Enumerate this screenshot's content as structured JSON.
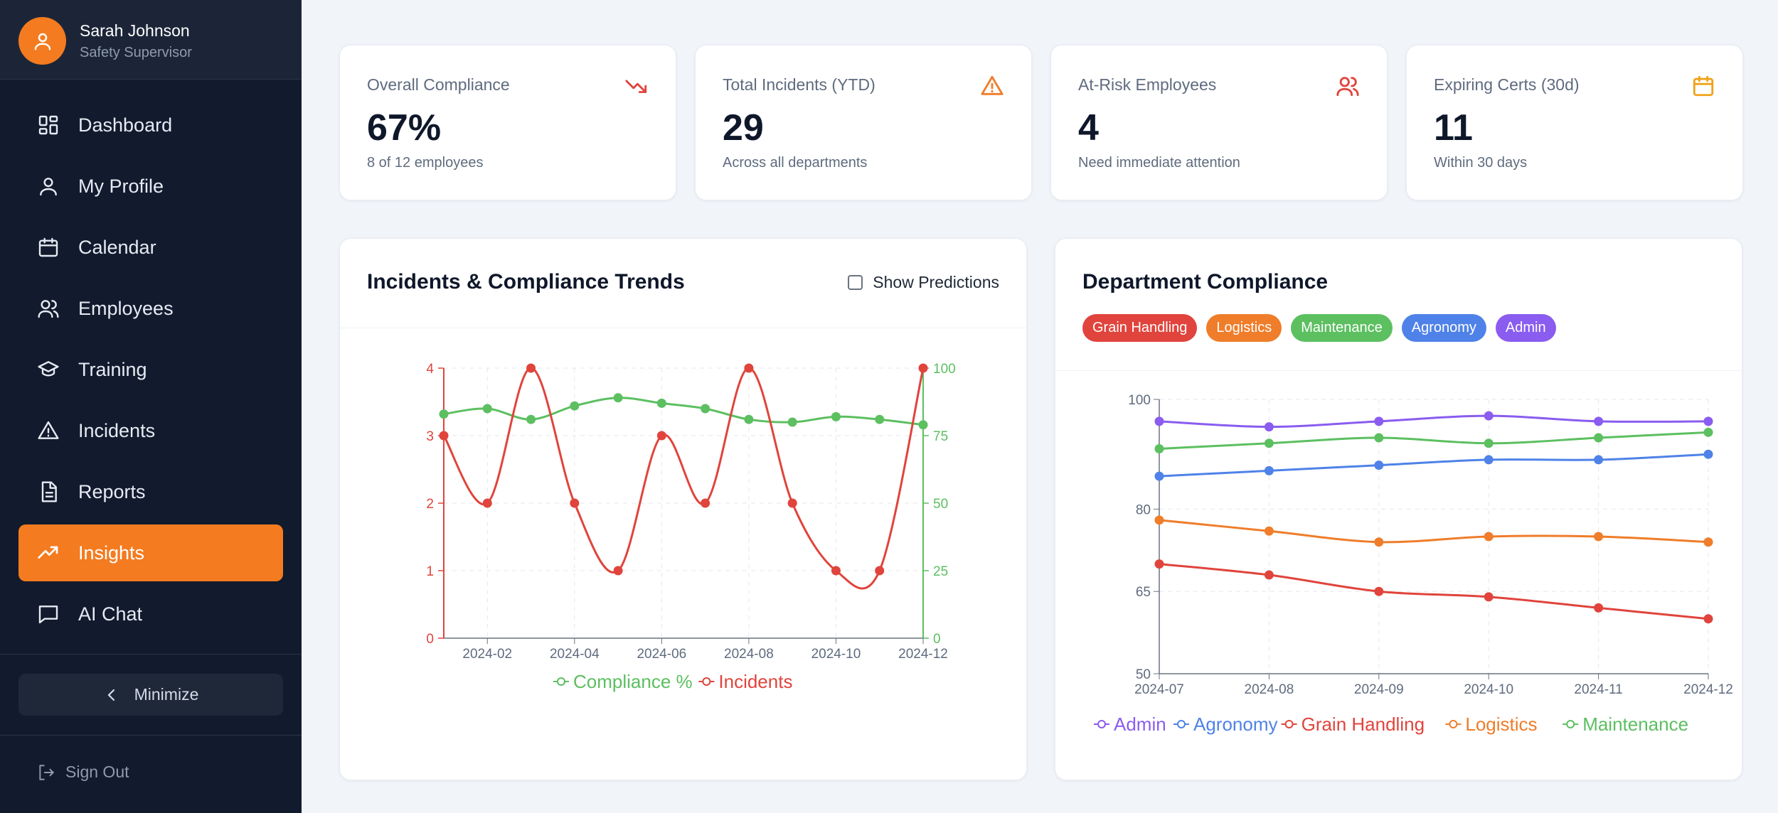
{
  "user": {
    "name": "Sarah Johnson",
    "role": "Safety Supervisor"
  },
  "nav": [
    {
      "label": "Dashboard",
      "icon": "dashboard-icon",
      "active": false
    },
    {
      "label": "My Profile",
      "icon": "user-icon",
      "active": false
    },
    {
      "label": "Calendar",
      "icon": "calendar-icon",
      "active": false
    },
    {
      "label": "Employees",
      "icon": "users-icon",
      "active": false
    },
    {
      "label": "Training",
      "icon": "graduation-cap-icon",
      "active": false
    },
    {
      "label": "Incidents",
      "icon": "warning-icon",
      "active": false
    },
    {
      "label": "Reports",
      "icon": "document-icon",
      "active": false
    },
    {
      "label": "Insights",
      "icon": "trending-up-icon",
      "active": true
    },
    {
      "label": "AI Chat",
      "icon": "chat-icon",
      "active": false
    }
  ],
  "minimize_label": "Minimize",
  "signout_label": "Sign Out",
  "colors": {
    "accent": "#f47b20",
    "sidebar": "#121a2d",
    "red": "#e0443c",
    "green": "#5cbf60",
    "blue": "#4f82e8",
    "orange": "#ef7d2a",
    "purple": "#8a5cf0"
  },
  "kpis": [
    {
      "label": "Overall Compliance",
      "value": "67%",
      "sub": "8 of 12 employees",
      "icon": "trending-down-icon"
    },
    {
      "label": "Total Incidents (YTD)",
      "value": "29",
      "sub": "Across all departments",
      "icon": "warning-icon"
    },
    {
      "label": "At-Risk Employees",
      "value": "4",
      "sub": "Need immediate attention",
      "icon": "users-icon"
    },
    {
      "label": "Expiring Certs (30d)",
      "value": "11",
      "sub": "Within 30 days",
      "icon": "calendar-icon"
    }
  ],
  "trends": {
    "title": "Incidents & Compliance Trends",
    "show_predictions_label": "Show Predictions",
    "show_predictions": false
  },
  "department": {
    "title": "Department Compliance",
    "chips": [
      "Grain Handling",
      "Logistics",
      "Maintenance",
      "Agronomy",
      "Admin"
    ]
  },
  "chart_data": [
    {
      "type": "line",
      "x": [
        "2024-01",
        "2024-02",
        "2024-03",
        "2024-04",
        "2024-05",
        "2024-06",
        "2024-07",
        "2024-08",
        "2024-09",
        "2024-10",
        "2024-11",
        "2024-12"
      ],
      "x_tick_labels": [
        "2024-02",
        "2024-04",
        "2024-06",
        "2024-08",
        "2024-10",
        "2024-12"
      ],
      "series": [
        {
          "name": "Compliance %",
          "axis": "right",
          "color": "#5cbf60",
          "values": [
            83,
            85,
            81,
            86,
            89,
            87,
            85,
            81,
            80,
            82,
            81,
            79
          ]
        },
        {
          "name": "Incidents",
          "axis": "left",
          "color": "#e0443c",
          "values": [
            3,
            2,
            4,
            2,
            1,
            3,
            2,
            4,
            2,
            1,
            1,
            4
          ]
        }
      ],
      "y_left": {
        "ticks": [
          0,
          1,
          2,
          3,
          4
        ],
        "range": [
          0,
          4
        ]
      },
      "y_right": {
        "ticks": [
          0,
          25,
          50,
          75,
          100
        ],
        "range": [
          0,
          100
        ]
      },
      "legend_position": "bottom",
      "grid": true
    },
    {
      "type": "line",
      "x": [
        "2024-07",
        "2024-08",
        "2024-09",
        "2024-10",
        "2024-11",
        "2024-12"
      ],
      "series": [
        {
          "name": "Admin",
          "color": "#8a5cf0",
          "values": [
            96,
            95,
            96,
            97,
            96,
            96
          ]
        },
        {
          "name": "Agronomy",
          "color": "#4f82e8",
          "values": [
            86,
            87,
            88,
            89,
            89,
            90
          ]
        },
        {
          "name": "Grain Handling",
          "color": "#e0443c",
          "values": [
            70,
            68,
            65,
            64,
            62,
            60
          ]
        },
        {
          "name": "Logistics",
          "color": "#ef7d2a",
          "values": [
            78,
            76,
            74,
            75,
            75,
            74
          ]
        },
        {
          "name": "Maintenance",
          "color": "#5cbf60",
          "values": [
            91,
            92,
            93,
            92,
            93,
            94
          ]
        }
      ],
      "y_ticks": [
        50,
        65,
        80,
        100
      ],
      "ylim": [
        50,
        100
      ],
      "legend_position": "bottom",
      "grid": true
    }
  ]
}
